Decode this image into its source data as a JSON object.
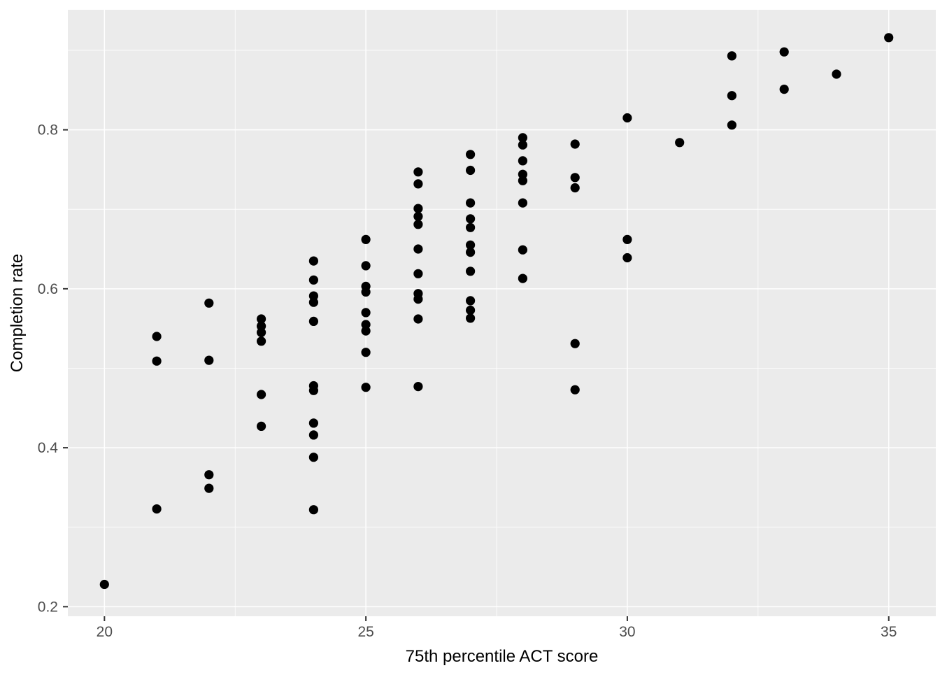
{
  "chart_data": {
    "type": "scatter",
    "title": "",
    "xlabel": "75th percentile ACT score",
    "ylabel": "Completion rate",
    "legend": "none",
    "grid": true,
    "panel_theme": "ggplot2-grey",
    "xlim": [
      19.3,
      35.9
    ],
    "ylim": [
      0.188,
      0.951
    ],
    "x_ticks": [
      {
        "value": 20,
        "label": "20"
      },
      {
        "value": 25,
        "label": "25"
      },
      {
        "value": 30,
        "label": "30"
      },
      {
        "value": 35,
        "label": "35"
      }
    ],
    "y_ticks": [
      {
        "value": 0.2,
        "label": "0.2"
      },
      {
        "value": 0.4,
        "label": "0.4"
      },
      {
        "value": 0.6,
        "label": "0.6"
      },
      {
        "value": 0.8,
        "label": "0.8"
      }
    ],
    "x_minor_ticks": [
      22.5,
      27.5,
      32.5
    ],
    "y_minor_ticks": [
      0.3,
      0.5,
      0.7,
      0.9
    ],
    "points": [
      [
        20,
        0.228
      ],
      [
        21,
        0.54
      ],
      [
        21,
        0.509
      ],
      [
        21,
        0.323
      ],
      [
        22,
        0.582
      ],
      [
        22,
        0.51
      ],
      [
        22,
        0.366
      ],
      [
        22,
        0.349
      ],
      [
        23,
        0.562
      ],
      [
        23,
        0.553
      ],
      [
        23,
        0.545
      ],
      [
        23,
        0.534
      ],
      [
        23,
        0.467
      ],
      [
        23,
        0.427
      ],
      [
        24,
        0.635
      ],
      [
        24,
        0.611
      ],
      [
        24,
        0.591
      ],
      [
        24,
        0.583
      ],
      [
        24,
        0.559
      ],
      [
        24,
        0.478
      ],
      [
        24,
        0.472
      ],
      [
        24,
        0.431
      ],
      [
        24,
        0.416
      ],
      [
        24,
        0.388
      ],
      [
        24,
        0.322
      ],
      [
        25,
        0.662
      ],
      [
        25,
        0.629
      ],
      [
        25,
        0.603
      ],
      [
        25,
        0.596
      ],
      [
        25,
        0.57
      ],
      [
        25,
        0.555
      ],
      [
        25,
        0.547
      ],
      [
        25,
        0.52
      ],
      [
        25,
        0.476
      ],
      [
        26,
        0.747
      ],
      [
        26,
        0.732
      ],
      [
        26,
        0.701
      ],
      [
        26,
        0.691
      ],
      [
        26,
        0.681
      ],
      [
        26,
        0.65
      ],
      [
        26,
        0.619
      ],
      [
        26,
        0.594
      ],
      [
        26,
        0.587
      ],
      [
        26,
        0.562
      ],
      [
        26,
        0.477
      ],
      [
        27,
        0.769
      ],
      [
        27,
        0.749
      ],
      [
        27,
        0.708
      ],
      [
        27,
        0.688
      ],
      [
        27,
        0.677
      ],
      [
        27,
        0.655
      ],
      [
        27,
        0.646
      ],
      [
        27,
        0.622
      ],
      [
        27,
        0.585
      ],
      [
        27,
        0.573
      ],
      [
        27,
        0.563
      ],
      [
        28,
        0.79
      ],
      [
        28,
        0.781
      ],
      [
        28,
        0.761
      ],
      [
        28,
        0.744
      ],
      [
        28,
        0.736
      ],
      [
        28,
        0.708
      ],
      [
        28,
        0.649
      ],
      [
        28,
        0.613
      ],
      [
        29,
        0.782
      ],
      [
        29,
        0.74
      ],
      [
        29,
        0.727
      ],
      [
        29,
        0.531
      ],
      [
        29,
        0.473
      ],
      [
        30,
        0.815
      ],
      [
        30,
        0.662
      ],
      [
        30,
        0.639
      ],
      [
        31,
        0.784
      ],
      [
        32,
        0.893
      ],
      [
        32,
        0.843
      ],
      [
        32,
        0.806
      ],
      [
        33,
        0.898
      ],
      [
        33,
        0.851
      ],
      [
        34,
        0.87
      ],
      [
        35,
        0.916
      ]
    ]
  },
  "style": {
    "canvas_bg": "#FFFFFF",
    "panel_bg": "#EBEBEB",
    "grid_color": "#FFFFFF",
    "point_color": "#000000",
    "tick_text_color": "#4D4D4D",
    "tick_mark_color": "#333333",
    "axis_title_color": "#000000"
  }
}
